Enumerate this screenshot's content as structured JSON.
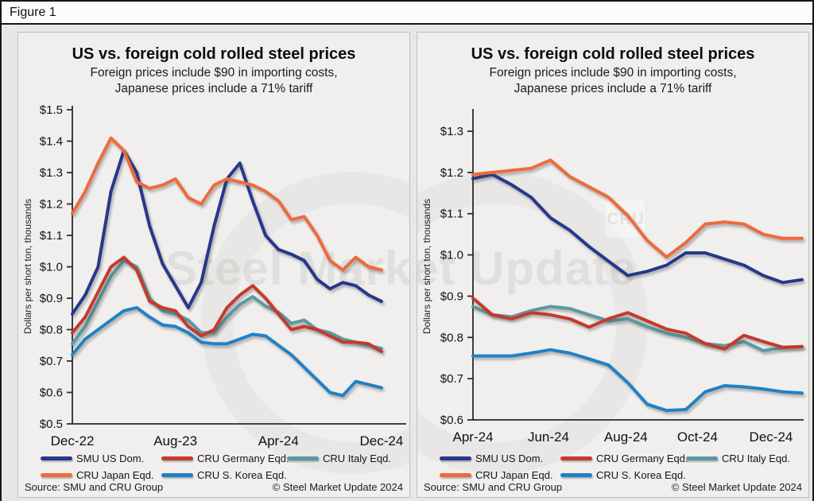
{
  "figure_label": "Figure 1",
  "watermark": {
    "text": "Steel Market Update",
    "badge": "CRU"
  },
  "footer": {
    "source": "Source: SMU and CRU Group",
    "copyright": "© Steel Market Update 2024"
  },
  "colors": {
    "navy": "#27378b",
    "red": "#c53a2b",
    "teal": "#5b99a2",
    "orange": "#ee6a3d",
    "sky_blue": "#2281c4",
    "panel_bg": "#f0efee",
    "page_bg": "#e8e7e5",
    "axis": "#2b2b2b"
  },
  "chart_data": [
    {
      "type": "line",
      "title": "US vs. foreign cold rolled steel prices",
      "subtitle_line1": "Foreign prices include $90 in importing costs,",
      "subtitle_line2": "Japanese prices include a 71% tariff",
      "ylabel": "Dollars per short ton, thousands",
      "ylim": [
        0.5,
        1.5
      ],
      "grid": false,
      "legend_position": "bottom",
      "y_ticks": [
        {
          "label": "$1.5",
          "value": 1.5
        },
        {
          "label": "$1.4",
          "value": 1.4
        },
        {
          "label": "$1.3",
          "value": 1.3
        },
        {
          "label": "$1.2",
          "value": 1.2
        },
        {
          "label": "$1.1",
          "value": 1.1
        },
        {
          "label": "$1.0",
          "value": 1.0
        },
        {
          "label": "$0.9",
          "value": 0.9
        },
        {
          "label": "$0.8",
          "value": 0.8
        },
        {
          "label": "$0.7",
          "value": 0.7
        },
        {
          "label": "$0.6",
          "value": 0.6
        },
        {
          "label": "$0.5",
          "value": 0.5
        }
      ],
      "x_ticks": [
        {
          "label": "Dec-22",
          "index": 0
        },
        {
          "label": "Aug-23",
          "index": 8
        },
        {
          "label": "Apr-24",
          "index": 16
        },
        {
          "label": "Dec-24",
          "index": 24
        }
      ],
      "x_unit": "months from Dec-2022, monthly samples",
      "legend_rows": [
        [
          0,
          1,
          2
        ],
        [
          3,
          4
        ]
      ],
      "series": [
        {
          "id": "smu-us-dom",
          "name": "SMU US Dom.",
          "color": "#27378b",
          "z": 1,
          "values": [
            0.85,
            0.91,
            1.0,
            1.24,
            1.37,
            1.3,
            1.13,
            1.01,
            0.94,
            0.87,
            0.95,
            1.13,
            1.28,
            1.33,
            1.21,
            1.1,
            1.055,
            1.04,
            1.02,
            0.96,
            0.93,
            0.95,
            0.94,
            0.91,
            0.89
          ]
        },
        {
          "id": "cru-germany-eqd",
          "name": "CRU Germany Eqd.",
          "color": "#c53a2b",
          "z": 3,
          "values": [
            0.79,
            0.84,
            0.92,
            1.0,
            1.03,
            0.99,
            0.89,
            0.87,
            0.86,
            0.81,
            0.78,
            0.8,
            0.87,
            0.91,
            0.94,
            0.9,
            0.85,
            0.8,
            0.81,
            0.8,
            0.78,
            0.76,
            0.76,
            0.755,
            0.73
          ]
        },
        {
          "id": "cru-italy-eqd",
          "name": "CRU Italy Eqd.",
          "color": "#5b99a2",
          "z": 2,
          "values": [
            0.755,
            0.81,
            0.89,
            0.97,
            1.02,
            1.0,
            0.9,
            0.86,
            0.85,
            0.83,
            0.79,
            0.79,
            0.84,
            0.88,
            0.905,
            0.875,
            0.855,
            0.82,
            0.83,
            0.8,
            0.79,
            0.77,
            0.76,
            0.75,
            0.74
          ]
        },
        {
          "id": "cru-japan-eqd",
          "name": "CRU Japan Eqd.",
          "color": "#ee6a3d",
          "z": 4,
          "values": [
            1.17,
            1.24,
            1.33,
            1.41,
            1.37,
            1.27,
            1.25,
            1.26,
            1.28,
            1.22,
            1.2,
            1.26,
            1.28,
            1.27,
            1.26,
            1.24,
            1.21,
            1.15,
            1.16,
            1.1,
            1.02,
            0.99,
            1.03,
            1.0,
            0.99
          ]
        },
        {
          "id": "cru-s-korea-eqd",
          "name": "CRU S. Korea Eqd.",
          "color": "#2281c4",
          "z": 5,
          "values": [
            0.72,
            0.77,
            0.8,
            0.83,
            0.86,
            0.87,
            0.84,
            0.815,
            0.81,
            0.79,
            0.76,
            0.755,
            0.755,
            0.77,
            0.785,
            0.78,
            0.75,
            0.72,
            0.68,
            0.64,
            0.6,
            0.59,
            0.635,
            0.625,
            0.615
          ]
        }
      ]
    },
    {
      "type": "line",
      "title": "US vs. foreign cold rolled steel prices",
      "subtitle_line1": "Foreign prices include $90 in importing costs,",
      "subtitle_line2": "Japanese prices include a 71% tariff",
      "ylabel": "Dollars per short ton, thousands",
      "ylim": [
        0.6,
        1.3
      ],
      "grid": false,
      "legend_position": "bottom",
      "y_ticks": [
        {
          "label": "$1.3",
          "value": 1.3
        },
        {
          "label": "$1.2",
          "value": 1.2
        },
        {
          "label": "$1.1",
          "value": 1.1
        },
        {
          "label": "$1.0",
          "value": 1.0
        },
        {
          "label": "$0.9",
          "value": 0.9
        },
        {
          "label": "$0.8",
          "value": 0.8
        },
        {
          "label": "$0.7",
          "value": 0.7
        },
        {
          "label": "$0.6",
          "value": 0.6
        }
      ],
      "x_ticks": [
        {
          "label": "Apr-24",
          "index": 0
        },
        {
          "label": "Jun-24",
          "index": 3.9
        },
        {
          "label": "Aug-24",
          "index": 7.9
        },
        {
          "label": "Oct-24",
          "index": 11.6
        },
        {
          "label": "Dec-24",
          "index": 15.4
        }
      ],
      "x_unit": "Apr-2024 to late Dec-2024, semi-monthly samples",
      "legend_rows": [
        [
          0,
          1,
          2
        ],
        [
          3,
          4
        ]
      ],
      "series": [
        {
          "id": "smu-us-dom",
          "name": "SMU US Dom.",
          "color": "#27378b",
          "z": 1,
          "values": [
            1.185,
            1.195,
            1.17,
            1.14,
            1.09,
            1.06,
            1.02,
            0.985,
            0.95,
            0.96,
            0.975,
            1.005,
            1.005,
            0.99,
            0.975,
            0.95,
            0.933,
            0.94
          ]
        },
        {
          "id": "cru-germany-eqd",
          "name": "CRU Germany Eqd.",
          "color": "#c53a2b",
          "z": 3,
          "values": [
            0.895,
            0.855,
            0.845,
            0.86,
            0.855,
            0.845,
            0.825,
            0.845,
            0.86,
            0.84,
            0.82,
            0.81,
            0.785,
            0.772,
            0.805,
            0.79,
            0.776,
            0.778
          ]
        },
        {
          "id": "cru-italy-eqd",
          "name": "CRU Italy Eqd.",
          "color": "#5b99a2",
          "z": 2,
          "values": [
            0.875,
            0.855,
            0.85,
            0.865,
            0.875,
            0.87,
            0.855,
            0.84,
            0.845,
            0.826,
            0.81,
            0.8,
            0.785,
            0.78,
            0.79,
            0.768,
            0.775,
            0.778
          ]
        },
        {
          "id": "cru-japan-eqd",
          "name": "CRU Japan Eqd.",
          "color": "#ee6a3d",
          "z": 4,
          "values": [
            1.195,
            1.2,
            1.205,
            1.21,
            1.23,
            1.19,
            1.165,
            1.14,
            1.095,
            1.035,
            0.995,
            1.03,
            1.075,
            1.08,
            1.075,
            1.05,
            1.04,
            1.04
          ]
        },
        {
          "id": "cru-s-korea-eqd",
          "name": "CRU S. Korea Eqd.",
          "color": "#2281c4",
          "z": 5,
          "values": [
            0.755,
            0.755,
            0.755,
            0.762,
            0.77,
            0.762,
            0.748,
            0.733,
            0.69,
            0.638,
            0.623,
            0.625,
            0.668,
            0.683,
            0.68,
            0.675,
            0.668,
            0.665
          ]
        }
      ]
    }
  ]
}
